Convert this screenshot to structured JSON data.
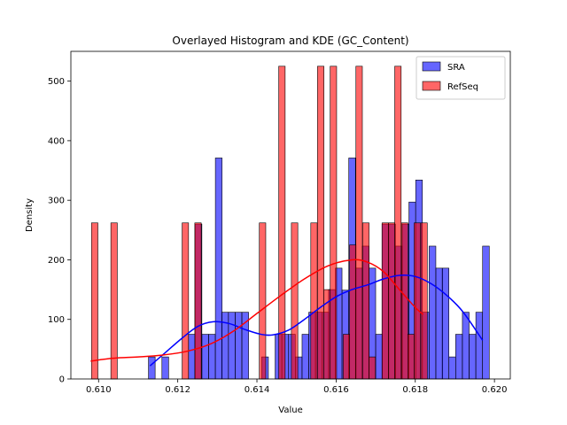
{
  "chart_data": {
    "type": "histogram",
    "title": "Overlayed Histogram and KDE (GC_Content)",
    "xlabel": "Value",
    "ylabel": "Density",
    "xlim": [
      0.6093,
      0.6204
    ],
    "ylim": [
      0,
      550
    ],
    "xticks": [
      0.61,
      0.612,
      0.614,
      0.616,
      0.618,
      0.62
    ],
    "xtick_labels": [
      "0.610",
      "0.612",
      "0.614",
      "0.616",
      "0.618",
      "0.620"
    ],
    "yticks": [
      0,
      100,
      200,
      300,
      400,
      500
    ],
    "ytick_labels": [
      "0",
      "100",
      "200",
      "300",
      "400",
      "500"
    ],
    "legend_position": "top-right",
    "series": [
      {
        "name": "SRA",
        "color": "#0000ff",
        "bin_width": 0.000169,
        "bins": [
          [
            0.61126,
            37
          ],
          [
            0.6116,
            37
          ],
          [
            0.61227,
            75
          ],
          [
            0.61244,
            260
          ],
          [
            0.61261,
            75
          ],
          [
            0.61278,
            75
          ],
          [
            0.61295,
            371
          ],
          [
            0.61311,
            112
          ],
          [
            0.61328,
            112
          ],
          [
            0.61345,
            112
          ],
          [
            0.61362,
            112
          ],
          [
            0.61412,
            37
          ],
          [
            0.61446,
            75
          ],
          [
            0.61463,
            75
          ],
          [
            0.6148,
            75
          ],
          [
            0.61497,
            37
          ],
          [
            0.61514,
            75
          ],
          [
            0.61531,
            112
          ],
          [
            0.61548,
            112
          ],
          [
            0.61565,
            112
          ],
          [
            0.61581,
            150
          ],
          [
            0.61598,
            186
          ],
          [
            0.61615,
            149
          ],
          [
            0.61632,
            371
          ],
          [
            0.61649,
            186
          ],
          [
            0.61666,
            223
          ],
          [
            0.61683,
            186
          ],
          [
            0.617,
            75
          ],
          [
            0.61716,
            260
          ],
          [
            0.61733,
            260
          ],
          [
            0.6175,
            223
          ],
          [
            0.61767,
            260
          ],
          [
            0.61784,
            297
          ],
          [
            0.61801,
            334
          ],
          [
            0.61818,
            112
          ],
          [
            0.61835,
            223
          ],
          [
            0.61852,
            186
          ],
          [
            0.61868,
            186
          ],
          [
            0.61885,
            37
          ],
          [
            0.61902,
            75
          ],
          [
            0.61919,
            112
          ],
          [
            0.61936,
            75
          ],
          [
            0.61953,
            112
          ],
          [
            0.6197,
            223
          ]
        ],
        "kde": [
          [
            0.6113,
            22
          ],
          [
            0.6117,
            45
          ],
          [
            0.6121,
            68
          ],
          [
            0.6125,
            88
          ],
          [
            0.6129,
            96
          ],
          [
            0.6133,
            93
          ],
          [
            0.6137,
            83
          ],
          [
            0.6141,
            75
          ],
          [
            0.6144,
            74
          ],
          [
            0.6148,
            82
          ],
          [
            0.6152,
            100
          ],
          [
            0.6156,
            120
          ],
          [
            0.616,
            138
          ],
          [
            0.6164,
            150
          ],
          [
            0.6168,
            158
          ],
          [
            0.6172,
            168
          ],
          [
            0.6176,
            174
          ],
          [
            0.618,
            172
          ],
          [
            0.6184,
            160
          ],
          [
            0.6188,
            140
          ],
          [
            0.6192,
            113
          ],
          [
            0.6197,
            65
          ]
        ]
      },
      {
        "name": "RefSeq",
        "color": "#ff0000",
        "bin_width": 0.000163,
        "bins": [
          [
            0.60982,
            262
          ],
          [
            0.61031,
            262
          ],
          [
            0.61211,
            262
          ],
          [
            0.61243,
            262
          ],
          [
            0.61406,
            262
          ],
          [
            0.61455,
            525
          ],
          [
            0.61487,
            262
          ],
          [
            0.61536,
            262
          ],
          [
            0.61553,
            525
          ],
          [
            0.61569,
            150
          ],
          [
            0.61585,
            525
          ],
          [
            0.61618,
            75
          ],
          [
            0.61634,
            225
          ],
          [
            0.6165,
            525
          ],
          [
            0.61667,
            262
          ],
          [
            0.61683,
            37
          ],
          [
            0.61716,
            262
          ],
          [
            0.61732,
            262
          ],
          [
            0.61748,
            525
          ],
          [
            0.61765,
            262
          ],
          [
            0.61781,
            75
          ],
          [
            0.61797,
            262
          ],
          [
            0.61814,
            262
          ]
        ],
        "kde": [
          [
            0.6098,
            30
          ],
          [
            0.6104,
            35
          ],
          [
            0.611,
            37
          ],
          [
            0.6116,
            40
          ],
          [
            0.6122,
            46
          ],
          [
            0.6128,
            58
          ],
          [
            0.6134,
            80
          ],
          [
            0.614,
            110
          ],
          [
            0.6146,
            140
          ],
          [
            0.6152,
            168
          ],
          [
            0.6158,
            190
          ],
          [
            0.6164,
            200
          ],
          [
            0.6168,
            196
          ],
          [
            0.6172,
            180
          ],
          [
            0.6176,
            150
          ],
          [
            0.618,
            120
          ],
          [
            0.6182,
            108
          ]
        ]
      }
    ]
  }
}
